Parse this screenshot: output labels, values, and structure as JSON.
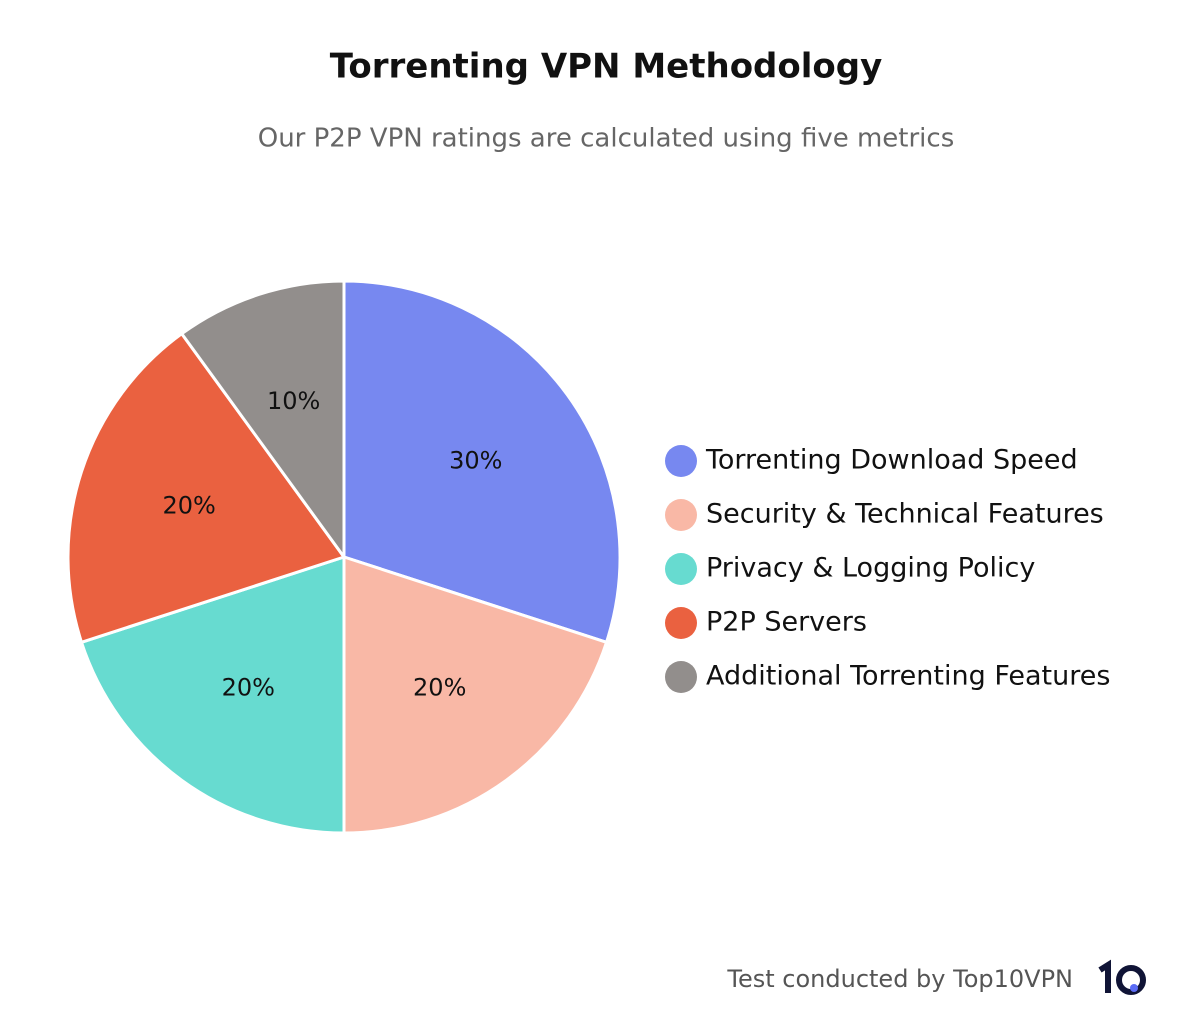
{
  "chart_data": {
    "type": "pie",
    "title": "Torrenting VPN Methodology",
    "subtitle": "Our P2P VPN ratings are calculated using five metrics",
    "categories": [
      "Torrenting Download Speed",
      "Security & Technical Features",
      "Privacy & Logging Policy",
      "P2P Servers",
      "Additional Torrenting Features"
    ],
    "values": [
      30,
      20,
      20,
      20,
      10
    ],
    "value_labels": [
      "30%",
      "20%",
      "20%",
      "20%",
      "10%"
    ],
    "colors": [
      "#7788f0",
      "#f9b8a6",
      "#67dbd0",
      "#ea6140",
      "#928e8c"
    ],
    "source": "Test conducted by Top10VPN"
  }
}
